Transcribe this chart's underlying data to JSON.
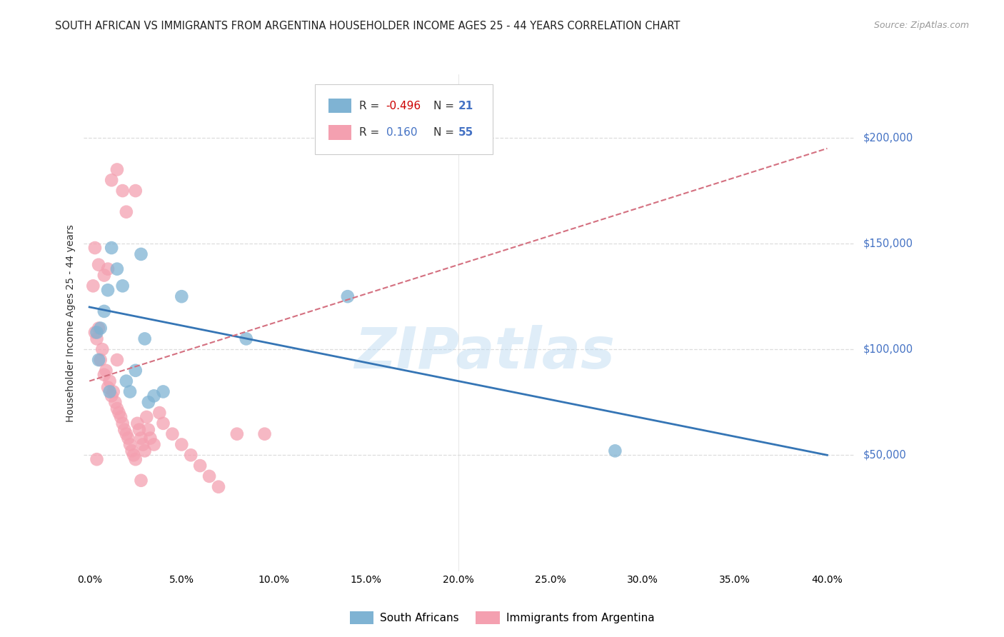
{
  "title": "SOUTH AFRICAN VS IMMIGRANTS FROM ARGENTINA HOUSEHOLDER INCOME AGES 25 - 44 YEARS CORRELATION CHART",
  "source": "Source: ZipAtlas.com",
  "ylabel": "Householder Income Ages 25 - 44 years",
  "xlabel_ticks": [
    "0.0%",
    "5.0%",
    "10.0%",
    "15.0%",
    "20.0%",
    "25.0%",
    "30.0%",
    "35.0%",
    "40.0%"
  ],
  "xlabel_values": [
    0.0,
    5.0,
    10.0,
    15.0,
    20.0,
    25.0,
    30.0,
    35.0,
    40.0
  ],
  "ylabel_ticks": [
    "$50,000",
    "$100,000",
    "$150,000",
    "$200,000"
  ],
  "ylabel_values": [
    50000,
    100000,
    150000,
    200000
  ],
  "ylim": [
    -5000,
    230000
  ],
  "xlim": [
    -0.3,
    41.5
  ],
  "watermark": "ZIPatlas",
  "blue_color": "#7fb3d3",
  "pink_color": "#f4a0b0",
  "blue_line_color": "#3575b5",
  "pink_line_color": "#d47080",
  "legend_label_blue": "South Africans",
  "legend_label_pink": "Immigrants from Argentina",
  "blue_points_x": [
    0.4,
    0.8,
    1.0,
    1.2,
    1.5,
    1.8,
    2.0,
    2.2,
    2.5,
    2.8,
    3.0,
    3.5,
    4.0,
    5.0,
    8.5,
    14.0,
    28.5,
    0.5,
    0.6,
    1.1,
    3.2
  ],
  "blue_points_y": [
    108000,
    118000,
    128000,
    148000,
    138000,
    130000,
    85000,
    80000,
    90000,
    145000,
    105000,
    78000,
    80000,
    125000,
    105000,
    125000,
    52000,
    95000,
    110000,
    80000,
    75000
  ],
  "pink_points_x": [
    0.2,
    0.3,
    0.4,
    0.5,
    0.6,
    0.7,
    0.8,
    0.9,
    1.0,
    1.1,
    1.2,
    1.3,
    1.4,
    1.5,
    1.6,
    1.7,
    1.8,
    1.9,
    2.0,
    2.1,
    2.2,
    2.3,
    2.4,
    2.5,
    2.6,
    2.7,
    2.8,
    2.9,
    3.0,
    3.1,
    3.2,
    3.3,
    3.5,
    3.8,
    4.0,
    4.5,
    5.0,
    5.5,
    6.0,
    6.5,
    7.0,
    0.3,
    0.5,
    0.8,
    1.0,
    1.2,
    1.5,
    1.8,
    2.0,
    2.5,
    9.5,
    0.4,
    2.8,
    8.0,
    1.5
  ],
  "pink_points_y": [
    130000,
    108000,
    105000,
    110000,
    95000,
    100000,
    88000,
    90000,
    82000,
    85000,
    78000,
    80000,
    75000,
    72000,
    70000,
    68000,
    65000,
    62000,
    60000,
    58000,
    55000,
    52000,
    50000,
    48000,
    65000,
    62000,
    58000,
    55000,
    52000,
    68000,
    62000,
    58000,
    55000,
    70000,
    65000,
    60000,
    55000,
    50000,
    45000,
    40000,
    35000,
    148000,
    140000,
    135000,
    138000,
    180000,
    185000,
    175000,
    165000,
    175000,
    60000,
    48000,
    38000,
    60000,
    95000
  ],
  "background_color": "#ffffff",
  "grid_color": "#dddddd",
  "blue_line_x0": 0.0,
  "blue_line_y0": 120000,
  "blue_line_x1": 40.0,
  "blue_line_y1": 50000,
  "pink_line_x0": 0.0,
  "pink_line_y0": 85000,
  "pink_line_x1": 40.0,
  "pink_line_y1": 195000
}
